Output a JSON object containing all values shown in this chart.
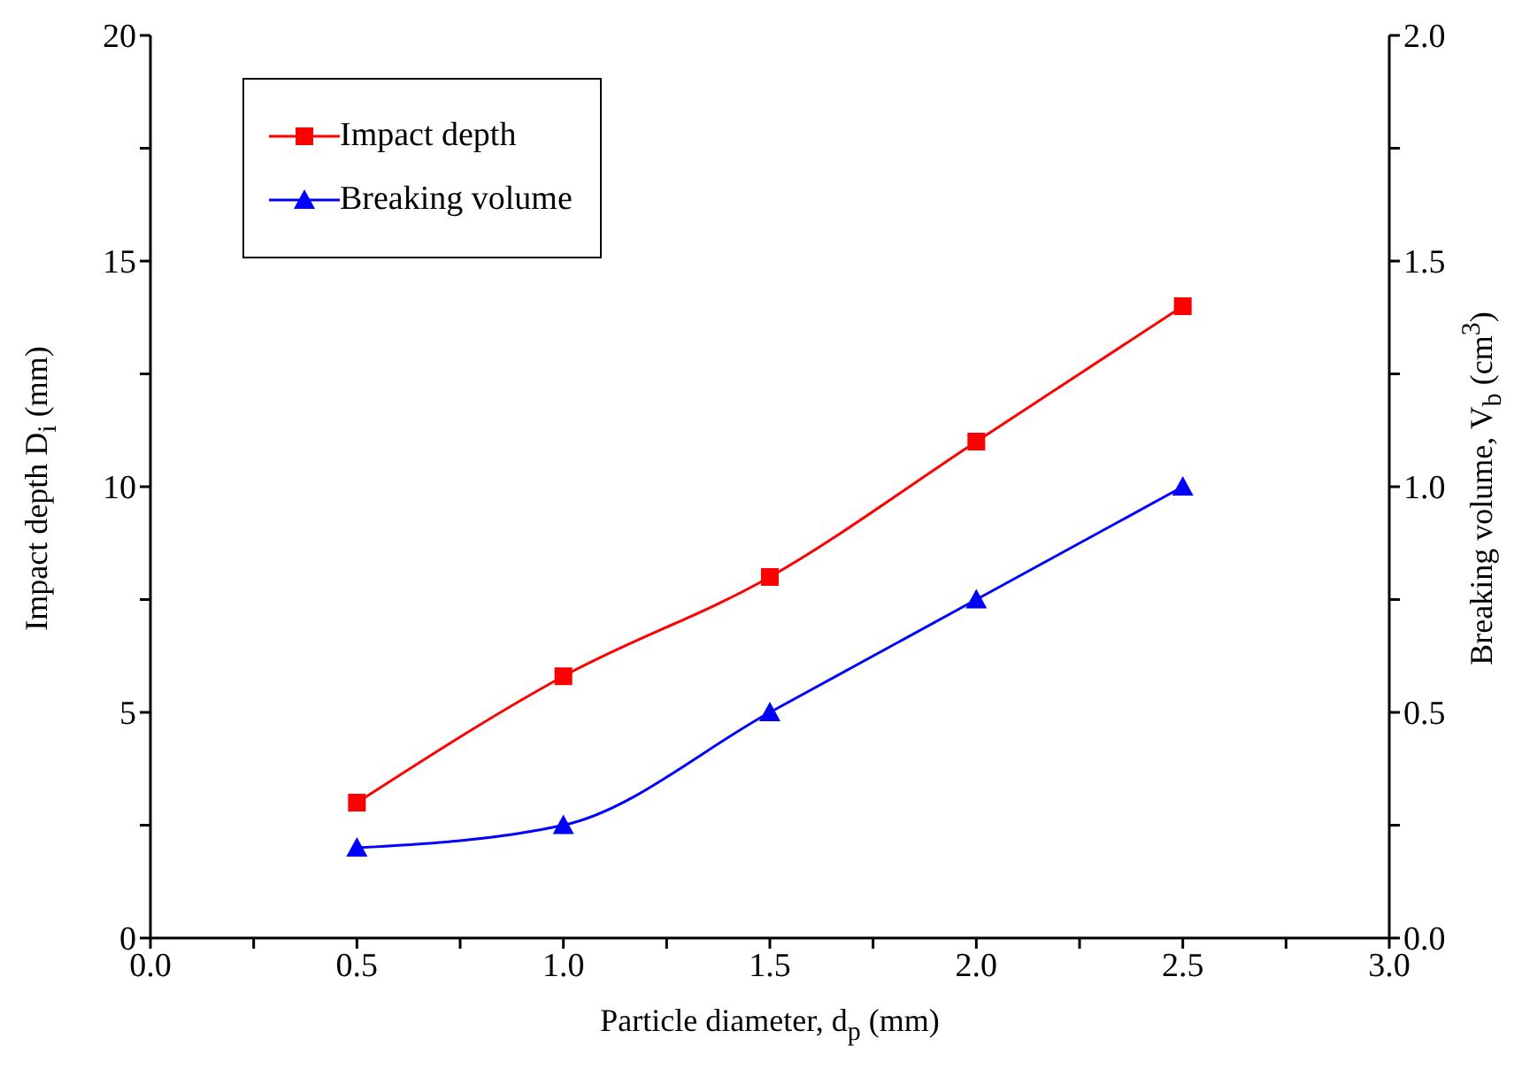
{
  "chart_data": {
    "type": "line",
    "xlabel": "Particle diameter, d$_{p}$ (mm)",
    "ylabel": "Impact depth D$_{i}$ (mm)",
    "y2label": "Breaking volume, V$_{b}$ (cm$^{3}$)",
    "x": [
      0.5,
      1.0,
      1.5,
      2.0,
      2.5
    ],
    "series": [
      {
        "name": "Impact depth",
        "color": "#ff0000",
        "marker": "square",
        "values": [
          3.0,
          5.8,
          8.0,
          11.0,
          14.0
        ]
      },
      {
        "name": "Breaking volume",
        "color": "#0000ff",
        "marker": "triangle",
        "axis": "y2",
        "values": [
          0.2,
          0.25,
          0.5,
          0.75,
          1.0
        ]
      }
    ],
    "xlim": [
      0,
      3
    ],
    "xticks": [
      {
        "value": 0,
        "label": "0.0"
      },
      {
        "value": 0.25,
        "label": null
      },
      {
        "value": 0.5,
        "label": "0.5"
      },
      {
        "value": 0.75,
        "label": null
      },
      {
        "value": 1,
        "label": "1.0"
      },
      {
        "value": 1.25,
        "label": null
      },
      {
        "value": 1.5,
        "label": "1.5"
      },
      {
        "value": 1.75,
        "label": null
      },
      {
        "value": 2,
        "label": "2.0"
      },
      {
        "value": 2.25,
        "label": null
      },
      {
        "value": 2.5,
        "label": "2.5"
      },
      {
        "value": 2.75,
        "label": null
      },
      {
        "value": 3,
        "label": "3.0"
      }
    ],
    "ylim": [
      0,
      20
    ],
    "yticks": [
      0,
      {
        "value": 2.5,
        "label": null
      },
      5,
      {
        "value": 7.5,
        "label": null
      },
      10,
      {
        "value": 12.5,
        "label": null
      },
      15,
      {
        "value": 17.5,
        "label": null
      },
      20
    ],
    "y2lim": [
      0,
      2
    ],
    "y2ticks": [
      {
        "value": 0,
        "label": "0.0"
      },
      {
        "value": 0.25,
        "label": null
      },
      {
        "value": 0.5,
        "label": "0.5"
      },
      {
        "value": 0.75,
        "label": null
      },
      {
        "value": 1,
        "label": "1.0"
      },
      {
        "value": 1.25,
        "label": null
      },
      {
        "value": 1.5,
        "label": "1.5"
      },
      {
        "value": 1.75,
        "label": null
      },
      {
        "value": 2,
        "label": "2.0"
      }
    ],
    "legend": "top left",
    "grid": false,
    "line_style": "solid"
  }
}
